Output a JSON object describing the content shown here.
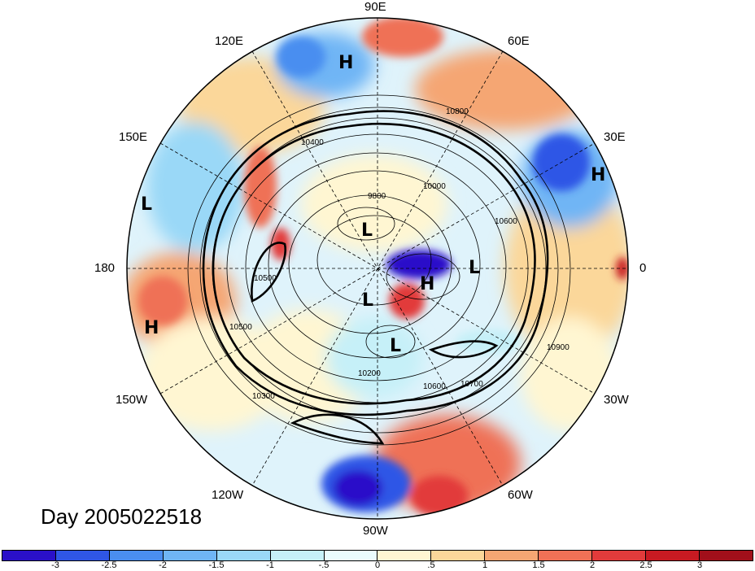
{
  "title": "Day 2005022518",
  "longitude_labels": [
    "90E",
    "60E",
    "30E",
    "0",
    "30W",
    "60W",
    "90W",
    "120W",
    "150W",
    "180",
    "150E",
    "120E"
  ],
  "colorbar": {
    "ticks": [
      "-3",
      "-2.5",
      "-2",
      "-1.5",
      "-1",
      "-.5",
      "0",
      ".5",
      "1",
      "1.5",
      "2",
      "2.5",
      "3"
    ],
    "colors": [
      "#2a10c9",
      "#2f56e6",
      "#4a8ef0",
      "#6fb5f5",
      "#9ad8f7",
      "#c6f0f8",
      "#eafbfd",
      "#fff6d2",
      "#fbd79a",
      "#f5a673",
      "#ef7156",
      "#e23b3b",
      "#c81a22",
      "#a10f1a"
    ]
  },
  "pressure_centers": [
    {
      "label": "H",
      "lon": "102E",
      "lat_hint": "mid"
    },
    {
      "label": "H",
      "lon": "7E",
      "lat_hint": "mid"
    },
    {
      "label": "L",
      "lon": "170E",
      "lat_hint": "low"
    },
    {
      "label": "L",
      "lon": "120E",
      "lat_hint": "polar"
    },
    {
      "label": "L",
      "lon": "15W",
      "lat_hint": "polar"
    },
    {
      "label": "H",
      "lon": "50W",
      "lat_hint": "polar"
    },
    {
      "label": "L",
      "lon": "100W",
      "lat_hint": "polar"
    },
    {
      "label": "L",
      "lon": "75W",
      "lat_hint": "polar"
    },
    {
      "label": "H",
      "lon": "165W",
      "lat_hint": "low"
    }
  ],
  "contour_labels": [
    "9800",
    "10000",
    "10400",
    "10500",
    "10600",
    "10700",
    "10800",
    "10900",
    "10500",
    "10300",
    "10600",
    "10200"
  ]
}
